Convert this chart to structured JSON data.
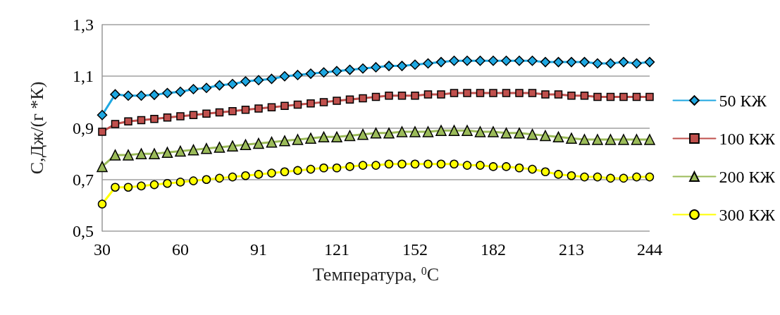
{
  "chart_data": {
    "type": "line",
    "xlabel": "Температура, $^{0}$С",
    "ylabel": "С,Дж/(г *К)",
    "categories": [
      "30",
      null,
      null,
      null,
      null,
      null,
      "60",
      null,
      null,
      null,
      null,
      null,
      "91",
      null,
      null,
      null,
      null,
      null,
      "121",
      null,
      null,
      null,
      null,
      null,
      "152",
      null,
      null,
      null,
      null,
      null,
      "182",
      null,
      null,
      null,
      null,
      null,
      "213",
      null,
      null,
      null,
      null,
      null,
      "244"
    ],
    "series": [
      {
        "name": "50 КЖ",
        "color": "#1ea7e1",
        "marker": "diamond",
        "values": [
          0.95,
          1.03,
          1.025,
          1.025,
          1.028,
          1.035,
          1.04,
          1.05,
          1.055,
          1.065,
          1.07,
          1.08,
          1.085,
          1.09,
          1.1,
          1.105,
          1.11,
          1.115,
          1.12,
          1.125,
          1.13,
          1.135,
          1.14,
          1.14,
          1.145,
          1.15,
          1.155,
          1.16,
          1.16,
          1.16,
          1.16,
          1.16,
          1.16,
          1.16,
          1.155,
          1.155,
          1.155,
          1.155,
          1.15,
          1.15,
          1.155,
          1.15,
          1.155
        ]
      },
      {
        "name": "100 КЖ",
        "color": "#c0504d",
        "marker": "square",
        "values": [
          0.885,
          0.915,
          0.925,
          0.93,
          0.935,
          0.94,
          0.945,
          0.95,
          0.955,
          0.96,
          0.965,
          0.97,
          0.975,
          0.98,
          0.985,
          0.99,
          0.995,
          1.0,
          1.005,
          1.01,
          1.015,
          1.02,
          1.025,
          1.025,
          1.025,
          1.03,
          1.03,
          1.035,
          1.035,
          1.035,
          1.035,
          1.035,
          1.035,
          1.035,
          1.03,
          1.03,
          1.025,
          1.025,
          1.02,
          1.02,
          1.02,
          1.02,
          1.02
        ]
      },
      {
        "name": "200 КЖ",
        "color": "#9bbb59",
        "marker": "triangle",
        "values": [
          0.75,
          0.795,
          0.795,
          0.8,
          0.8,
          0.805,
          0.81,
          0.815,
          0.82,
          0.825,
          0.83,
          0.835,
          0.84,
          0.845,
          0.85,
          0.855,
          0.86,
          0.865,
          0.865,
          0.87,
          0.875,
          0.88,
          0.88,
          0.885,
          0.885,
          0.885,
          0.89,
          0.89,
          0.89,
          0.885,
          0.885,
          0.88,
          0.88,
          0.875,
          0.87,
          0.865,
          0.86,
          0.855,
          0.855,
          0.855,
          0.855,
          0.855,
          0.855
        ]
      },
      {
        "name": "300 КЖ",
        "color": "#ffff00",
        "marker": "circle",
        "values": [
          0.605,
          0.67,
          0.67,
          0.675,
          0.68,
          0.685,
          0.69,
          0.695,
          0.7,
          0.705,
          0.71,
          0.715,
          0.72,
          0.725,
          0.73,
          0.735,
          0.74,
          0.745,
          0.745,
          0.75,
          0.755,
          0.755,
          0.76,
          0.76,
          0.76,
          0.76,
          0.76,
          0.76,
          0.755,
          0.755,
          0.75,
          0.75,
          0.745,
          0.74,
          0.73,
          0.72,
          0.715,
          0.71,
          0.71,
          0.705,
          0.705,
          0.71,
          0.71
        ]
      }
    ],
    "ylim": [
      0.5,
      1.3
    ],
    "yticks": [
      {
        "value": 0.5,
        "label": "0,5"
      },
      {
        "value": 0.7,
        "label": "0,7"
      },
      {
        "value": 0.9,
        "label": "0,9"
      },
      {
        "value": 1.1,
        "label": "1,1"
      },
      {
        "value": 1.3,
        "label": "1,3"
      }
    ],
    "grid": "y",
    "legend": "right",
    "line_style": "solid"
  }
}
